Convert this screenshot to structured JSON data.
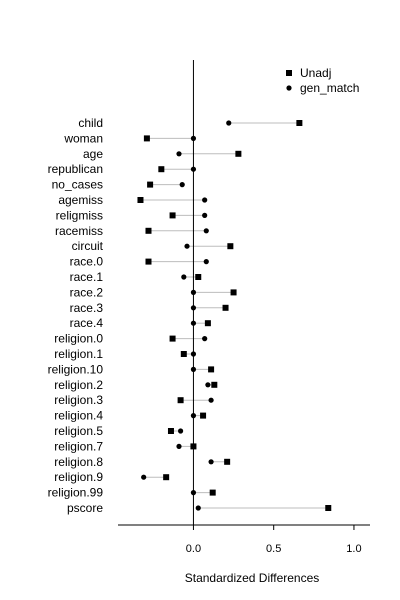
{
  "chart_data": {
    "type": "scatter",
    "xlabel": "Standardized Differences",
    "xlim": [
      -0.47,
      1.1
    ],
    "x_ticks": [
      0.0,
      0.5,
      1.0
    ],
    "x_tick_labels": [
      "0.0",
      "0.5",
      "1.0"
    ],
    "reference_line_x": 0,
    "legend": {
      "placement": "top-right",
      "entries": [
        {
          "label": "Unadj",
          "marker": "square"
        },
        {
          "label": "gen_match",
          "marker": "circle"
        }
      ]
    },
    "categories": [
      "child",
      "woman",
      "age",
      "republican",
      "no_cases",
      "agemiss",
      "religmiss",
      "racemiss",
      "circuit",
      "race.0",
      "race.1",
      "race.2",
      "race.3",
      "race.4",
      "religion.0",
      "religion.1",
      "religion.10",
      "religion.2",
      "religion.3",
      "religion.4",
      "religion.5",
      "religion.7",
      "religion.8",
      "religion.9",
      "religion.99",
      "pscore"
    ],
    "series": [
      {
        "name": "Unadj",
        "marker": "square",
        "values": [
          0.66,
          -0.29,
          0.28,
          -0.2,
          -0.27,
          -0.33,
          -0.13,
          -0.28,
          0.23,
          -0.28,
          0.03,
          0.25,
          0.2,
          0.09,
          -0.13,
          -0.06,
          0.11,
          0.13,
          -0.08,
          0.06,
          -0.14,
          0.0,
          0.21,
          -0.17,
          0.12,
          0.84
        ]
      },
      {
        "name": "gen_match",
        "marker": "circle",
        "values": [
          0.22,
          0.0,
          -0.09,
          0.0,
          -0.07,
          0.07,
          0.07,
          0.08,
          -0.04,
          0.08,
          -0.06,
          0.0,
          0.0,
          0.0,
          0.07,
          0.0,
          0.0,
          0.09,
          0.11,
          0.0,
          -0.08,
          -0.09,
          0.11,
          -0.31,
          0.0,
          0.03
        ]
      }
    ]
  }
}
